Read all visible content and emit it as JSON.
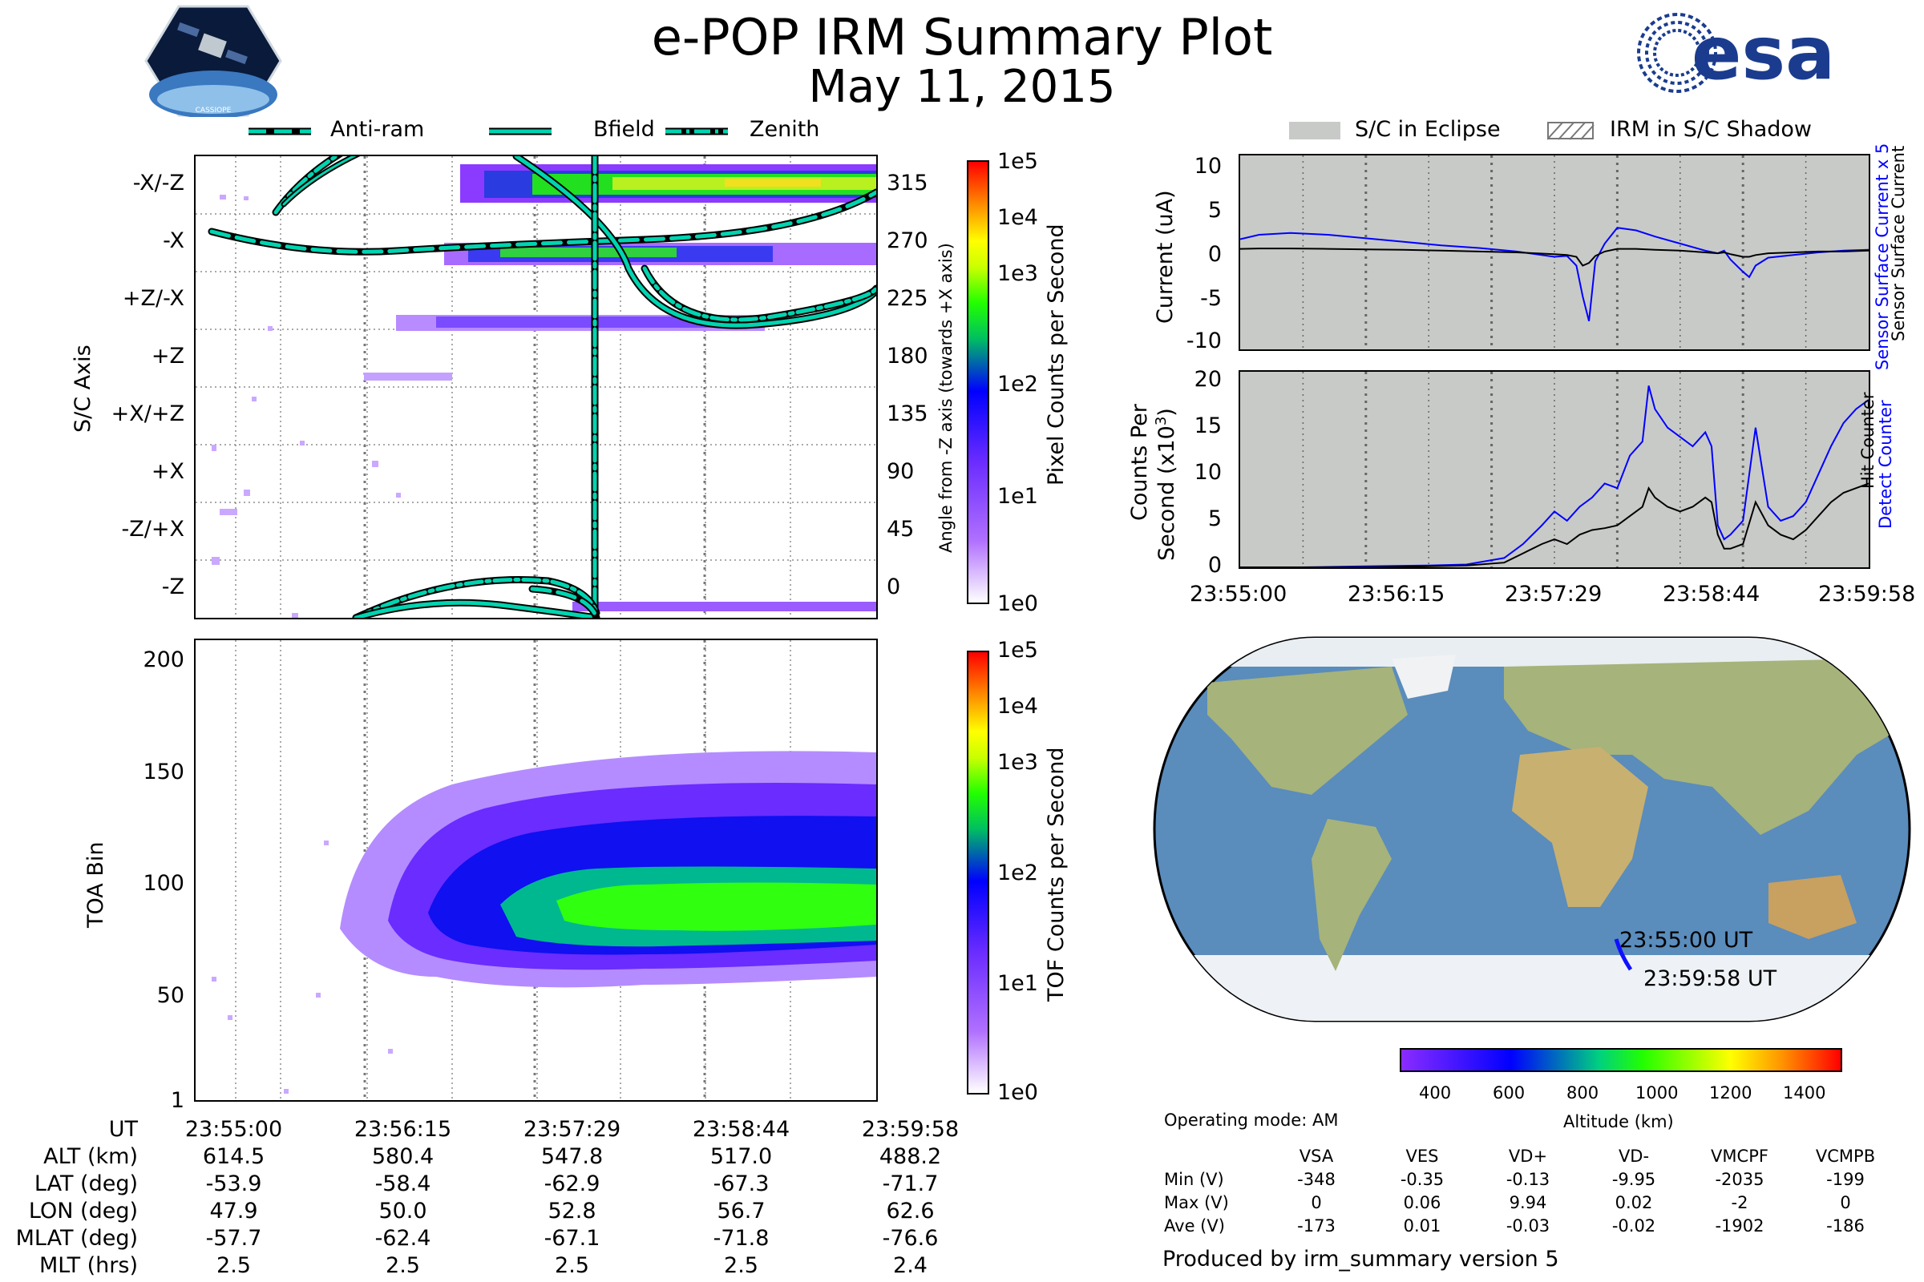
{
  "title": "e-POP IRM Summary Plot",
  "date": "May 11, 2015",
  "logos": {
    "left": "CASSIOPE",
    "right": "esa"
  },
  "top_legend": {
    "anti_ram": "Anti-ram",
    "bfield": "Bfield",
    "zenith": "Zenith"
  },
  "eclipse_legend": {
    "eclipse": "S/C in Eclipse",
    "shadow": "IRM in S/C Shadow"
  },
  "colors": {
    "sensor": "#0000ff",
    "black": "#000000",
    "shade": "#c8cac8",
    "curve": "#00d4b0"
  },
  "chart_data": [
    {
      "type": "heatmap",
      "name": "pixel-spectrogram",
      "ylabel": "S/C Axis",
      "y_categories": [
        "-X/-Z",
        "-X",
        "+Z/-X",
        "+Z",
        "+X/+Z",
        "+X",
        "-Z/+X",
        "-Z"
      ],
      "right_ticks": [
        "315",
        "270",
        "225",
        "180",
        "135",
        "90",
        "45",
        "0"
      ],
      "right_label": "Angle from -Z axis (towards +X axis)",
      "colorbar": {
        "label": "Pixel Counts per Second",
        "ticks": [
          "1e5",
          "1e4",
          "1e3",
          "1e2",
          "1e1",
          "1e0"
        ]
      }
    },
    {
      "type": "heatmap",
      "name": "toa-spectrogram",
      "ylabel": "TOA Bin",
      "yticks": [
        "200",
        "150",
        "100",
        "50",
        "1"
      ],
      "ylim": [
        1,
        210
      ],
      "colorbar": {
        "label": "TOF Counts per Second",
        "ticks": [
          "1e5",
          "1e4",
          "1e3",
          "1e2",
          "1e1",
          "1e0"
        ]
      }
    },
    {
      "type": "line",
      "name": "current",
      "ylabel": "Current (uA)",
      "ylim": [
        -11,
        11
      ],
      "yticks": [
        "10",
        "5",
        "0",
        "-5",
        "-10"
      ],
      "right_label_1": "Sensor Surface Current x 5",
      "right_label_2": "Sensor Surface Current",
      "x": [
        0,
        0.03,
        0.08,
        0.14,
        0.2,
        0.26,
        0.32,
        0.38,
        0.44,
        0.5,
        0.52,
        0.535,
        0.545,
        0.555,
        0.565,
        0.58,
        0.6,
        0.63,
        0.66,
        0.7,
        0.74,
        0.76,
        0.77,
        0.78,
        0.8,
        0.81,
        0.82,
        0.84,
        0.88,
        0.92,
        0.96,
        1.0
      ],
      "series": [
        {
          "name": "Sensor Surface Current x 5",
          "values": [
            1.5,
            2.0,
            2.2,
            2.0,
            1.6,
            1.2,
            0.8,
            0.5,
            0.1,
            -0.5,
            -0.4,
            -1.5,
            -5.0,
            -7.8,
            -1.0,
            1.0,
            2.8,
            2.5,
            1.8,
            1.0,
            0.2,
            -0.1,
            0.2,
            -0.8,
            -2.2,
            -2.8,
            -1.5,
            -0.6,
            -0.3,
            0.0,
            0.2,
            0.3
          ]
        },
        {
          "name": "Sensor Surface Current",
          "values": [
            0.4,
            0.45,
            0.45,
            0.4,
            0.35,
            0.3,
            0.2,
            0.1,
            0.0,
            -0.2,
            -0.3,
            -0.5,
            -1.5,
            -1.2,
            -0.4,
            0.1,
            0.4,
            0.4,
            0.3,
            0.2,
            0.0,
            -0.1,
            0.0,
            -0.2,
            -0.5,
            -0.5,
            -0.3,
            -0.1,
            0.0,
            0.1,
            0.1,
            0.2
          ]
        }
      ]
    },
    {
      "type": "line",
      "name": "counts",
      "ylabel_1": "Counts Per",
      "ylabel_2": "Second (x10",
      "ylabel_exp": "3",
      "ylabel_end": ")",
      "ylim": [
        0,
        21
      ],
      "yticks": [
        "20",
        "15",
        "10",
        "5",
        "0"
      ],
      "right_label_1": "Detect Counter",
      "right_label_2": "Hit Counter",
      "x": [
        0,
        0.1,
        0.2,
        0.3,
        0.36,
        0.42,
        0.45,
        0.48,
        0.5,
        0.52,
        0.54,
        0.56,
        0.58,
        0.6,
        0.62,
        0.64,
        0.65,
        0.66,
        0.68,
        0.7,
        0.72,
        0.74,
        0.75,
        0.76,
        0.77,
        0.78,
        0.8,
        0.82,
        0.84,
        0.86,
        0.88,
        0.9,
        0.92,
        0.94,
        0.96,
        0.98,
        1.0
      ],
      "series": [
        {
          "name": "Detect Counter",
          "values": [
            0.0,
            0.0,
            0.1,
            0.2,
            0.3,
            1.0,
            2.5,
            4.5,
            6.0,
            5.0,
            6.5,
            7.5,
            9.0,
            8.5,
            12.0,
            13.5,
            19.5,
            17.0,
            15.0,
            14.0,
            13.0,
            14.5,
            13.0,
            4.5,
            3.0,
            3.5,
            5.0,
            15.0,
            6.5,
            5.0,
            5.5,
            7.0,
            10.0,
            13.0,
            15.5,
            17.0,
            18.0
          ]
        },
        {
          "name": "Hit Counter",
          "values": [
            0.0,
            0.0,
            0.0,
            0.1,
            0.2,
            0.5,
            1.5,
            2.5,
            3.0,
            2.5,
            3.5,
            4.0,
            4.2,
            4.5,
            5.5,
            6.5,
            8.5,
            7.5,
            6.5,
            6.0,
            6.5,
            7.5,
            7.0,
            3.5,
            2.0,
            2.0,
            2.5,
            7.0,
            4.5,
            3.5,
            3.0,
            4.0,
            5.5,
            7.0,
            8.0,
            8.5,
            9.0
          ]
        }
      ]
    }
  ],
  "time_ticks": [
    "23:55:00",
    "23:56:15",
    "23:57:29",
    "23:58:44",
    "23:59:58"
  ],
  "orbit_table": {
    "rows": [
      {
        "label": "UT",
        "values": [
          "23:55:00",
          "23:56:15",
          "23:57:29",
          "23:58:44",
          "23:59:58"
        ]
      },
      {
        "label": "ALT (km)",
        "values": [
          "614.5",
          "580.4",
          "547.8",
          "517.0",
          "488.2"
        ]
      },
      {
        "label": "LAT (deg)",
        "values": [
          "-53.9",
          "-58.4",
          "-62.9",
          "-67.3",
          "-71.7"
        ]
      },
      {
        "label": "LON (deg)",
        "values": [
          "47.9",
          "50.0",
          "52.8",
          "56.7",
          "62.6"
        ]
      },
      {
        "label": "MLAT (deg)",
        "values": [
          "-57.7",
          "-62.4",
          "-67.1",
          "-71.8",
          "-76.6"
        ]
      },
      {
        "label": "MLT (hrs)",
        "values": [
          "2.5",
          "2.5",
          "2.5",
          "2.5",
          "2.4"
        ]
      }
    ]
  },
  "map": {
    "start_label": "23:55:00 UT",
    "end_label": "23:59:58 UT"
  },
  "altitude_colorbar": {
    "label": "Altitude (km)",
    "ticks": [
      "400",
      "600",
      "800",
      "1000",
      "1200",
      "1400"
    ]
  },
  "operating_mode": "Operating mode: AM",
  "voltage_table": {
    "headers": [
      "VSA",
      "VES",
      "VD+",
      "VD-",
      "VMCPF",
      "VCMPB"
    ],
    "rows": [
      {
        "label": "Min (V)",
        "values": [
          "-348",
          "-0.35",
          "-0.13",
          "-9.95",
          "-2035",
          "-199"
        ]
      },
      {
        "label": "Max (V)",
        "values": [
          "0",
          "0.06",
          "9.94",
          "0.02",
          "-2",
          "0"
        ]
      },
      {
        "label": "Ave (V)",
        "values": [
          "-173",
          "0.01",
          "-0.03",
          "-0.02",
          "-1902",
          "-186"
        ]
      }
    ]
  },
  "footer": "Produced by irm_summary version 5"
}
